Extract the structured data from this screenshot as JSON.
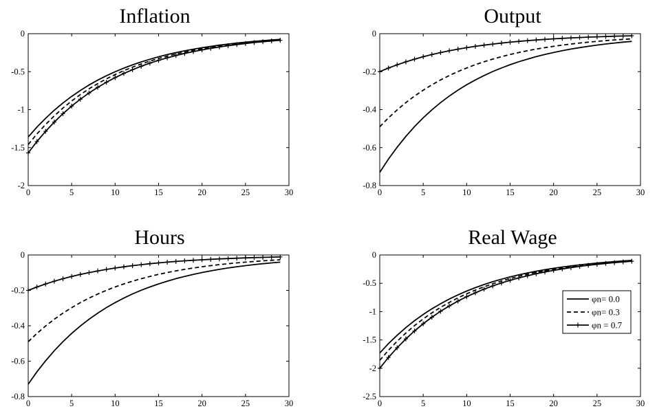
{
  "chart_data": [
    {
      "type": "line",
      "title": "Inflation",
      "xlim": [
        0,
        30
      ],
      "ylim": [
        -2,
        0
      ],
      "xticks": [
        "0",
        "5",
        "10",
        "15",
        "20",
        "25",
        "30"
      ],
      "yticks": [
        "0",
        "-0.5",
        "-1",
        "-1.5",
        "-2"
      ],
      "x_range": [
        0,
        29
      ],
      "series": [
        {
          "initial": -1.36,
          "decay": 0.905
        },
        {
          "initial": -1.46,
          "decay": 0.905
        },
        {
          "initial": -1.57,
          "decay": 0.905
        }
      ]
    },
    {
      "type": "line",
      "title": "Output",
      "xlim": [
        0,
        30
      ],
      "ylim": [
        -0.8,
        0
      ],
      "xticks": [
        "0",
        "5",
        "10",
        "15",
        "20",
        "25",
        "30"
      ],
      "yticks": [
        "0",
        "-0.2",
        "-0.4",
        "-0.6",
        "-0.8"
      ],
      "x_range": [
        0,
        29
      ],
      "series": [
        {
          "initial": -0.73,
          "decay": 0.905
        },
        {
          "initial": -0.49,
          "decay": 0.905
        },
        {
          "initial": -0.2,
          "decay": 0.905
        }
      ]
    },
    {
      "type": "line",
      "title": "Hours",
      "xlim": [
        0,
        30
      ],
      "ylim": [
        -0.8,
        0
      ],
      "xticks": [
        "0",
        "5",
        "10",
        "15",
        "20",
        "25",
        "30"
      ],
      "yticks": [
        "0",
        "-0.2",
        "-0.4",
        "-0.6",
        "-0.8"
      ],
      "x_range": [
        0,
        29
      ],
      "series": [
        {
          "initial": -0.73,
          "decay": 0.905
        },
        {
          "initial": -0.49,
          "decay": 0.905
        },
        {
          "initial": -0.2,
          "decay": 0.905
        }
      ]
    },
    {
      "type": "line",
      "title": "Real Wage",
      "xlim": [
        0,
        30
      ],
      "ylim": [
        -2.5,
        0
      ],
      "xticks": [
        "0",
        "5",
        "10",
        "15",
        "20",
        "25",
        "30"
      ],
      "yticks": [
        "0",
        "-0.5",
        "-1",
        "-1.5",
        "-2",
        "-2.5"
      ],
      "x_range": [
        0,
        29
      ],
      "series": [
        {
          "initial": -1.73,
          "decay": 0.905
        },
        {
          "initial": -1.86,
          "decay": 0.905
        },
        {
          "initial": -2.0,
          "decay": 0.905
        }
      ],
      "legend": {
        "placement": "right",
        "entries": [
          {
            "label": "φn= 0.0",
            "style": "solid"
          },
          {
            "label": "φn= 0.3",
            "style": "dashed"
          },
          {
            "label": "φn = 0.7",
            "style": "solid-plus"
          }
        ]
      }
    }
  ]
}
